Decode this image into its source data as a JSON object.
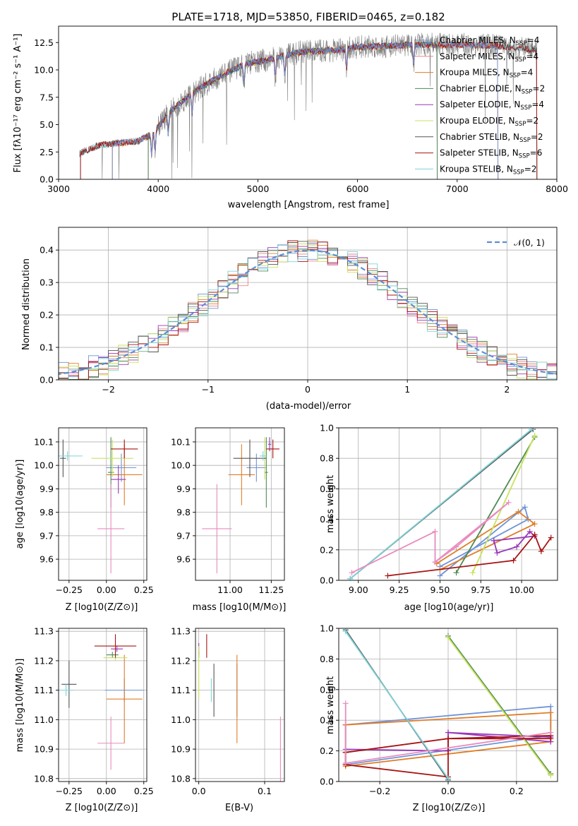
{
  "colors": {
    "chab_miles": "#6f93d6",
    "salp_miles": "#e98686",
    "krou_miles": "#e07d28",
    "chab_elodie": "#4e8a52",
    "salp_elodie": "#9b38b8",
    "krou_elodie": "#c8e35c",
    "chab_stelib": "#555555",
    "salp_stelib": "#a81414",
    "krou_stelib": "#7fd3d8",
    "data": "#808080",
    "normal": "#5b8fd6",
    "pink": "#e88bbf"
  },
  "chart_data": [
    {
      "type": "line",
      "title": "PLATE=1718, MJD=53850, FIBERID=0465, z=0.182",
      "xlabel": "wavelength [Angstrom, rest frame]",
      "ylabel": "Flux [fλ10⁻¹⁷ erg cm⁻² s⁻¹ A⁻¹]",
      "xlim": [
        3000,
        8000
      ],
      "ylim": [
        0,
        14
      ],
      "xticks": [
        "3000",
        "4000",
        "5000",
        "6000",
        "7000",
        "8000"
      ],
      "yticks": [
        "0.0",
        "2.5",
        "5.0",
        "7.5",
        "10.0",
        "12.5"
      ],
      "legend_loc": "upper right",
      "legend": [
        "Chabrier MILES, N_SSP=4",
        "Salpeter MILES, N_SSP=4",
        "Kroupa MILES, N_SSP=4",
        "Chabrier ELODIE, N_SSP=2",
        "Salpeter ELODIE, N_SSP=4",
        "Kroupa ELODIE, N_SSP=2",
        "Chabrier STELIB, N_SSP=2",
        "Salpeter STELIB, N_SSP=6",
        "Kroupa STELIB, N_SSP=2"
      ],
      "continuum": {
        "x": [
          3200,
          3400,
          3600,
          3800,
          3950,
          4100,
          4300,
          4500,
          4700,
          4900,
          5100,
          5300,
          5500,
          5800,
          6000,
          6300,
          6600,
          7000,
          7400,
          7800
        ],
        "y": [
          2.3,
          3.1,
          3.3,
          3.5,
          4.2,
          6.0,
          7.6,
          8.8,
          9.8,
          10.6,
          10.9,
          11.4,
          11.7,
          11.8,
          12.1,
          12.2,
          12.3,
          12.3,
          12.2,
          11.8
        ]
      }
    },
    {
      "type": "bar",
      "xlabel": "(data-model)/error",
      "ylabel": "Normed distribution",
      "xlim": [
        -2.5,
        2.5
      ],
      "ylim": [
        0,
        0.47
      ],
      "xticks": [
        "−2",
        "−1",
        "0",
        "1",
        "2"
      ],
      "yticks": [
        "0.0",
        "0.1",
        "0.2",
        "0.3",
        "0.4"
      ],
      "legend": [
        "𝒩(0, 1)"
      ],
      "legend_loc": "upper right",
      "bin_width": 0.1
    },
    {
      "type": "scatter",
      "xlabel": "Z [log10(Z/Z⊙)]",
      "ylabel": "age [log10(age/yr)]",
      "xlim": [
        -0.32,
        0.27
      ],
      "ylim": [
        9.51,
        10.16
      ],
      "xticks": [
        "−0.25",
        "0.00",
        "0.25"
      ],
      "yticks": [
        "9.6",
        "9.7",
        "9.8",
        "9.9",
        "10.0",
        "10.1"
      ],
      "points": [
        {
          "s": "chab_miles",
          "x": 0.1,
          "y": 9.99,
          "dx": 0.1,
          "dy": 0.06
        },
        {
          "s": "krou_miles",
          "x": 0.12,
          "y": 9.96,
          "dx": 0.12,
          "dy": 0.13
        },
        {
          "s": "chab_elodie",
          "x": 0.03,
          "y": 9.97,
          "dx": 0.02,
          "dy": 0.15
        },
        {
          "s": "salp_elodie",
          "x": 0.08,
          "y": 9.94,
          "dx": 0.05,
          "dy": 0.06
        },
        {
          "s": "krou_elodie",
          "x": 0.04,
          "y": 10.03,
          "dx": 0.14,
          "dy": 0.08
        },
        {
          "s": "chab_stelib",
          "x": -0.29,
          "y": 10.03,
          "dx": 0.02,
          "dy": 0.08
        },
        {
          "s": "salp_stelib",
          "x": 0.12,
          "y": 10.07,
          "dx": 0.09,
          "dy": 0.04
        },
        {
          "s": "krou_stelib",
          "x": -0.26,
          "y": 10.04,
          "dx": 0.1,
          "dy": 0.02
        },
        {
          "s": "pink",
          "x": 0.03,
          "y": 9.73,
          "dx": 0.09,
          "dy": 0.19
        }
      ]
    },
    {
      "type": "scatter",
      "xlabel": "mass [log10(M/M⊙)]",
      "xlim": [
        10.79,
        11.33
      ],
      "ylim": [
        9.51,
        10.16
      ],
      "xticks": [
        "11.00",
        "11.25"
      ],
      "yticks": [
        "9.6",
        "9.7",
        "9.8",
        "9.9",
        "10.0",
        "10.1"
      ],
      "points": [
        {
          "s": "chab_miles",
          "x": 11.16,
          "y": 9.99,
          "dx": 0.06,
          "dy": 0.06
        },
        {
          "s": "krou_miles",
          "x": 11.07,
          "y": 9.96,
          "dx": 0.08,
          "dy": 0.13
        },
        {
          "s": "chab_elodie",
          "x": 11.22,
          "y": 9.97,
          "dx": 0.01,
          "dy": 0.15
        },
        {
          "s": "salp_elodie",
          "x": 11.24,
          "y": 10.09,
          "dx": 0.01,
          "dy": 0.03
        },
        {
          "s": "krou_elodie",
          "x": 11.21,
          "y": 10.03,
          "dx": 0.01,
          "dy": 0.09
        },
        {
          "s": "chab_stelib",
          "x": 11.12,
          "y": 10.03,
          "dx": 0.1,
          "dy": 0.08
        },
        {
          "s": "salp_stelib",
          "x": 11.26,
          "y": 10.07,
          "dx": 0.04,
          "dy": 0.04
        },
        {
          "s": "krou_stelib",
          "x": 11.2,
          "y": 10.04,
          "dx": 0.02,
          "dy": 0.02
        },
        {
          "s": "pink",
          "x": 10.92,
          "y": 9.73,
          "dx": 0.09,
          "dy": 0.19
        }
      ]
    },
    {
      "type": "line",
      "xlabel": "age [log10(age/yr)]",
      "ylabel": "mass weight",
      "xlim": [
        8.88,
        10.22
      ],
      "ylim": [
        0,
        1
      ],
      "xticks": [
        "9.00",
        "9.25",
        "9.50",
        "9.75",
        "10.00"
      ],
      "yticks": [
        "0.0",
        "0.2",
        "0.4",
        "0.6",
        "0.8",
        "1.0"
      ],
      "series": [
        {
          "s": "chab_miles",
          "x": [
            9.5,
            10.02,
            10.04,
            9.5
          ],
          "y": [
            0.03,
            0.48,
            0.4,
            0.09
          ]
        },
        {
          "s": "krou_miles",
          "x": [
            9.48,
            9.98,
            10.08,
            9.5
          ],
          "y": [
            0.11,
            0.45,
            0.37,
            0.07
          ]
        },
        {
          "s": "chab_elodie",
          "x": [
            9.6,
            10.08
          ],
          "y": [
            0.05,
            0.94
          ]
        },
        {
          "s": "salp_elodie",
          "x": [
            9.83,
            9.85,
            9.97,
            10.05,
            10.08,
            9.83
          ],
          "y": [
            0.26,
            0.18,
            0.22,
            0.32,
            0.29,
            0.26
          ]
        },
        {
          "s": "krou_elodie",
          "x": [
            9.7,
            10.08
          ],
          "y": [
            0.05,
            0.95
          ]
        },
        {
          "s": "chab_stelib",
          "x": [
            8.95,
            10.07
          ],
          "y": [
            0.01,
            0.99
          ]
        },
        {
          "s": "salp_stelib",
          "x": [
            9.18,
            9.95,
            10.08,
            10.12,
            10.18
          ],
          "y": [
            0.03,
            0.13,
            0.3,
            0.19,
            0.28
          ]
        },
        {
          "s": "krou_stelib",
          "x": [
            8.95,
            10.06
          ],
          "y": [
            0.01,
            0.99
          ]
        },
        {
          "s": "pink",
          "x": [
            8.96,
            9.47,
            9.47,
            9.6,
            9.92,
            9.47
          ],
          "y": [
            0.05,
            0.32,
            0.12,
            0.22,
            0.51,
            0.12
          ]
        }
      ]
    },
    {
      "type": "scatter",
      "xlabel": "Z [log10(Z/Z⊙)]",
      "ylabel": "mass [log10(M/M⊙)]",
      "xlim": [
        -0.32,
        0.27
      ],
      "ylim": [
        10.79,
        11.31
      ],
      "xticks": [
        "−0.25",
        "0.00",
        "0.25"
      ],
      "yticks": [
        "10.8",
        "10.9",
        "11.0",
        "11.1",
        "11.2",
        "11.3"
      ],
      "points": [
        {
          "s": "chab_miles",
          "x": 0.12,
          "y": 11.1,
          "dx": 0.13,
          "dy": 0.04
        },
        {
          "s": "krou_miles",
          "x": 0.12,
          "y": 11.07,
          "dx": 0.12,
          "dy": 0.15
        },
        {
          "s": "chab_elodie",
          "x": 0.04,
          "y": 11.22,
          "dx": 0.04,
          "dy": 0.01
        },
        {
          "s": "salp_elodie",
          "x": 0.07,
          "y": 11.24,
          "dx": 0.04,
          "dy": 0.01
        },
        {
          "s": "krou_elodie",
          "x": 0.06,
          "y": 11.21,
          "dx": 0.08,
          "dy": 0.01
        },
        {
          "s": "chab_stelib",
          "x": -0.25,
          "y": 11.12,
          "dx": 0.05,
          "dy": 0.08
        },
        {
          "s": "salp_stelib",
          "x": 0.06,
          "y": 11.25,
          "dx": 0.14,
          "dy": 0.04
        },
        {
          "s": "krou_stelib",
          "x": -0.27,
          "y": 11.1,
          "dx": 0.05,
          "dy": 0.02
        },
        {
          "s": "pink",
          "x": 0.03,
          "y": 10.92,
          "dx": 0.09,
          "dy": 0.09
        }
      ]
    },
    {
      "type": "scatter",
      "xlabel": "E(B-V)",
      "xlim": [
        -0.005,
        0.13
      ],
      "ylim": [
        10.79,
        11.31
      ],
      "xticks": [
        "0.0",
        "0.1"
      ],
      "yticks": [
        "10.8",
        "10.9",
        "11.0",
        "11.1",
        "11.2",
        "11.3"
      ],
      "points": [
        {
          "s": "chab_miles",
          "x": 0.058,
          "y": 11.1,
          "dx": 0,
          "dy": 0.09
        },
        {
          "s": "krou_miles",
          "x": 0.058,
          "y": 11.07,
          "dx": 0,
          "dy": 0.15
        },
        {
          "s": "chab_elodie",
          "x": 0.0,
          "y": 11.22,
          "dx": 0,
          "dy": 0.01
        },
        {
          "s": "salp_elodie",
          "x": 0.0,
          "y": 11.24,
          "dx": 0,
          "dy": 0.02
        },
        {
          "s": "krou_elodie",
          "x": 0.0,
          "y": 11.16,
          "dx": 0,
          "dy": 0.09
        },
        {
          "s": "chab_stelib",
          "x": 0.023,
          "y": 11.1,
          "dx": 0,
          "dy": 0.09
        },
        {
          "s": "salp_stelib",
          "x": 0.012,
          "y": 11.25,
          "dx": 0,
          "dy": 0.04
        },
        {
          "s": "krou_stelib",
          "x": 0.019,
          "y": 11.1,
          "dx": 0,
          "dy": 0.04
        },
        {
          "s": "pink",
          "x": 0.124,
          "y": 10.9,
          "dx": 0,
          "dy": 0.11
        }
      ]
    },
    {
      "type": "line",
      "xlabel": "Z [log10(Z/Z⊙)]",
      "ylabel": "mass weight",
      "xlim": [
        -0.32,
        0.32
      ],
      "ylim": [
        0,
        1
      ],
      "xticks": [
        "−0.2",
        "0.0",
        "0.2"
      ],
      "yticks": [
        "0.0",
        "0.2",
        "0.4",
        "0.6",
        "0.8",
        "1.0"
      ],
      "series": [
        {
          "s": "chab_miles",
          "x": [
            -0.3,
            0.3,
            0.3,
            -0.3,
            -0.3
          ],
          "y": [
            0.37,
            0.49,
            0.3,
            0.11,
            0.37
          ]
        },
        {
          "s": "krou_miles",
          "x": [
            -0.3,
            0.3,
            0.3,
            -0.3,
            -0.3
          ],
          "y": [
            0.37,
            0.45,
            0.26,
            0.1,
            0.37
          ]
        },
        {
          "s": "chab_elodie",
          "x": [
            0.0,
            0.3
          ],
          "y": [
            0.95,
            0.05
          ]
        },
        {
          "s": "salp_elodie",
          "x": [
            -0.3,
            0.0,
            0.0,
            0.3,
            0.3,
            0.0
          ],
          "y": [
            0.21,
            0.2,
            0.32,
            0.26,
            0.29,
            0.32
          ]
        },
        {
          "s": "krou_elodie",
          "x": [
            0.0,
            0.3
          ],
          "y": [
            0.94,
            0.04
          ]
        },
        {
          "s": "chab_stelib",
          "x": [
            -0.3,
            0.0
          ],
          "y": [
            0.99,
            0.01
          ]
        },
        {
          "s": "salp_stelib",
          "x": [
            -0.3,
            -0.3,
            0.0,
            0.0,
            0.3,
            0.3,
            0.0,
            -0.3
          ],
          "y": [
            0.19,
            0.11,
            0.03,
            0.28,
            0.3,
            0.28,
            0.28,
            0.19
          ]
        },
        {
          "s": "krou_stelib",
          "x": [
            -0.3,
            0.0
          ],
          "y": [
            0.98,
            0.02
          ]
        },
        {
          "s": "pink",
          "x": [
            -0.3,
            -0.3,
            0.3,
            -0.3
          ],
          "y": [
            0.51,
            0.12,
            0.32,
            0.12
          ]
        }
      ]
    }
  ]
}
